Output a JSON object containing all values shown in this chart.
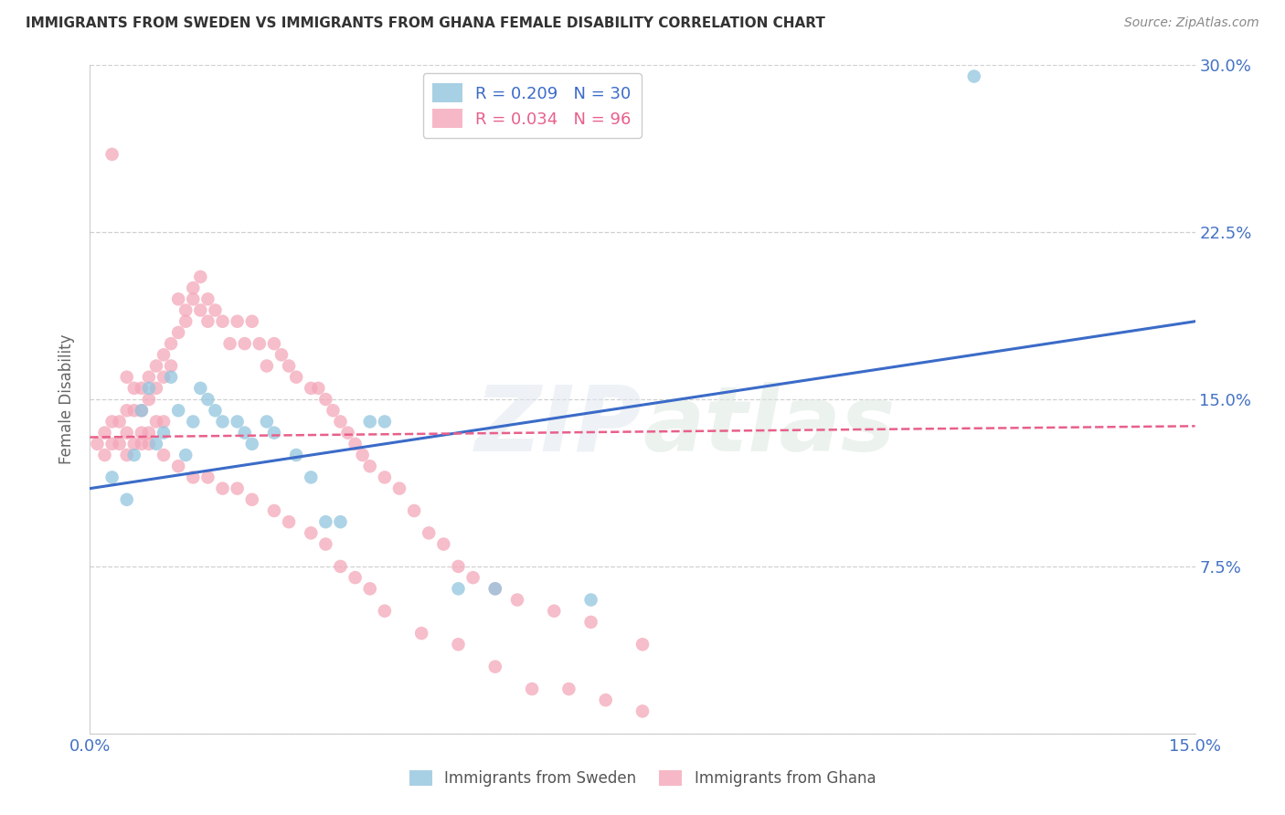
{
  "title": "IMMIGRANTS FROM SWEDEN VS IMMIGRANTS FROM GHANA FEMALE DISABILITY CORRELATION CHART",
  "source": "Source: ZipAtlas.com",
  "ylabel": "Female Disability",
  "xlim": [
    0.0,
    0.15
  ],
  "ylim": [
    0.0,
    0.3
  ],
  "yticks": [
    0.0,
    0.075,
    0.15,
    0.225,
    0.3
  ],
  "ytick_labels": [
    "",
    "7.5%",
    "15.0%",
    "22.5%",
    "30.0%"
  ],
  "xtick_labels": [
    "0.0%",
    "15.0%"
  ],
  "watermark": "ZIPatlas",
  "sweden_color": "#92c5de",
  "ghana_color": "#f4a7b9",
  "sweden_line_color": "#3b6bc8",
  "ghana_line_color": "#e8608a",
  "axis_label_color": "#4472c4",
  "right_label_color": "#4472c4",
  "title_color": "#333333",
  "source_color": "#888888",
  "grid_color": "#d0d0d0",
  "sweden_scatter": {
    "x": [
      0.003,
      0.005,
      0.006,
      0.007,
      0.008,
      0.009,
      0.01,
      0.011,
      0.012,
      0.013,
      0.014,
      0.015,
      0.016,
      0.017,
      0.018,
      0.02,
      0.021,
      0.022,
      0.024,
      0.025,
      0.028,
      0.03,
      0.032,
      0.034,
      0.038,
      0.04,
      0.05,
      0.055,
      0.068,
      0.12
    ],
    "y": [
      0.115,
      0.105,
      0.125,
      0.145,
      0.155,
      0.13,
      0.135,
      0.16,
      0.145,
      0.125,
      0.14,
      0.155,
      0.15,
      0.145,
      0.14,
      0.14,
      0.135,
      0.13,
      0.14,
      0.135,
      0.125,
      0.115,
      0.095,
      0.095,
      0.14,
      0.14,
      0.065,
      0.065,
      0.06,
      0.295
    ]
  },
  "ghana_scatter": {
    "x": [
      0.001,
      0.002,
      0.002,
      0.003,
      0.003,
      0.004,
      0.004,
      0.005,
      0.005,
      0.005,
      0.006,
      0.006,
      0.006,
      0.007,
      0.007,
      0.007,
      0.008,
      0.008,
      0.008,
      0.009,
      0.009,
      0.009,
      0.01,
      0.01,
      0.01,
      0.011,
      0.011,
      0.012,
      0.012,
      0.013,
      0.013,
      0.014,
      0.014,
      0.015,
      0.015,
      0.016,
      0.016,
      0.017,
      0.018,
      0.019,
      0.02,
      0.021,
      0.022,
      0.023,
      0.024,
      0.025,
      0.026,
      0.027,
      0.028,
      0.03,
      0.031,
      0.032,
      0.033,
      0.034,
      0.035,
      0.036,
      0.037,
      0.038,
      0.04,
      0.042,
      0.044,
      0.046,
      0.048,
      0.05,
      0.052,
      0.055,
      0.058,
      0.063,
      0.068,
      0.075,
      0.003,
      0.005,
      0.007,
      0.008,
      0.01,
      0.012,
      0.014,
      0.016,
      0.018,
      0.02,
      0.022,
      0.025,
      0.027,
      0.03,
      0.032,
      0.034,
      0.036,
      0.038,
      0.04,
      0.045,
      0.05,
      0.055,
      0.06,
      0.065,
      0.07,
      0.075
    ],
    "y": [
      0.13,
      0.135,
      0.125,
      0.14,
      0.13,
      0.14,
      0.13,
      0.145,
      0.135,
      0.125,
      0.155,
      0.145,
      0.13,
      0.155,
      0.145,
      0.13,
      0.16,
      0.15,
      0.135,
      0.165,
      0.155,
      0.14,
      0.17,
      0.16,
      0.14,
      0.175,
      0.165,
      0.18,
      0.195,
      0.19,
      0.185,
      0.195,
      0.2,
      0.19,
      0.205,
      0.195,
      0.185,
      0.19,
      0.185,
      0.175,
      0.185,
      0.175,
      0.185,
      0.175,
      0.165,
      0.175,
      0.17,
      0.165,
      0.16,
      0.155,
      0.155,
      0.15,
      0.145,
      0.14,
      0.135,
      0.13,
      0.125,
      0.12,
      0.115,
      0.11,
      0.1,
      0.09,
      0.085,
      0.075,
      0.07,
      0.065,
      0.06,
      0.055,
      0.05,
      0.04,
      0.26,
      0.16,
      0.135,
      0.13,
      0.125,
      0.12,
      0.115,
      0.115,
      0.11,
      0.11,
      0.105,
      0.1,
      0.095,
      0.09,
      0.085,
      0.075,
      0.07,
      0.065,
      0.055,
      0.045,
      0.04,
      0.03,
      0.02,
      0.02,
      0.015,
      0.01
    ]
  },
  "sweden_line_x": [
    0.0,
    0.15
  ],
  "sweden_line_y": [
    0.11,
    0.185
  ],
  "ghana_line_x": [
    0.0,
    0.15
  ],
  "ghana_line_y": [
    0.133,
    0.138
  ]
}
